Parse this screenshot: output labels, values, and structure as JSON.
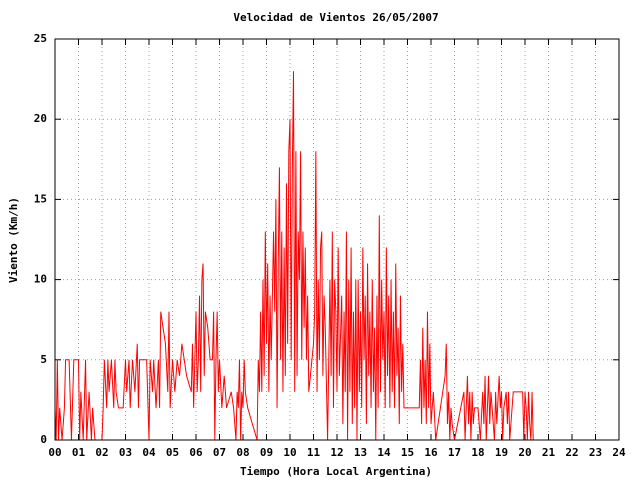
{
  "chart_data": {
    "type": "line",
    "title": "Velocidad de Vientos 26/05/2007",
    "xlabel": "Tiempo (Hora Local Argentina)",
    "ylabel": "Viento (Km/h)",
    "grid": true,
    "xlim": [
      0,
      24
    ],
    "ylim": [
      0,
      25
    ],
    "yticks": [
      0,
      5,
      10,
      15,
      20,
      25
    ],
    "xticks": [
      {
        "value": 0,
        "label": "00"
      },
      {
        "value": 1,
        "label": "01"
      },
      {
        "value": 2,
        "label": "02"
      },
      {
        "value": 3,
        "label": "03"
      },
      {
        "value": 4,
        "label": "04"
      },
      {
        "value": 5,
        "label": "05"
      },
      {
        "value": 6,
        "label": "06"
      },
      {
        "value": 7,
        "label": "07"
      },
      {
        "value": 8,
        "label": "08"
      },
      {
        "value": 9,
        "label": "09"
      },
      {
        "value": 10,
        "label": "10"
      },
      {
        "value": 11,
        "label": "11"
      },
      {
        "value": 12,
        "label": "12"
      },
      {
        "value": 13,
        "label": "13"
      },
      {
        "value": 14,
        "label": "14"
      },
      {
        "value": 15,
        "label": "15"
      },
      {
        "value": 16,
        "label": "16"
      },
      {
        "value": 17,
        "label": "17"
      },
      {
        "value": 18,
        "label": "18"
      },
      {
        "value": 19,
        "label": "19"
      },
      {
        "value": 20,
        "label": "20"
      },
      {
        "value": 21,
        "label": "21"
      },
      {
        "value": 22,
        "label": "22"
      },
      {
        "value": 23,
        "label": "23"
      },
      {
        "value": 24,
        "label": "24"
      }
    ],
    "x": [
      0,
      0.05,
      0.1,
      0.15,
      0.2,
      0.3,
      0.4,
      0.45,
      0.6,
      0.7,
      0.8,
      1,
      1.05,
      1.1,
      1.2,
      1.3,
      1.35,
      1.45,
      1.55,
      1.6,
      1.7,
      2,
      2.05,
      2.1,
      2.2,
      2.25,
      2.3,
      2.4,
      2.5,
      2.55,
      2.6,
      2.7,
      2.9,
      3,
      3.05,
      3.15,
      3.2,
      3.3,
      3.4,
      3.5,
      3.55,
      3.6,
      3.9,
      4,
      4.05,
      4.15,
      4.2,
      4.3,
      4.4,
      4.45,
      4.5,
      4.7,
      4.8,
      4.85,
      4.9,
      5,
      5.1,
      5.2,
      5.3,
      5.4,
      5.6,
      5.8,
      5.85,
      5.9,
      6,
      6.05,
      6.1,
      6.15,
      6.2,
      6.25,
      6.3,
      6.35,
      6.4,
      6.5,
      6.6,
      6.7,
      6.75,
      6.8,
      6.85,
      6.9,
      6.95,
      7,
      7.1,
      7.2,
      7.3,
      7.5,
      7.6,
      7.7,
      7.75,
      7.8,
      7.85,
      7.9,
      7.95,
      8,
      8.05,
      8.1,
      8.2,
      8.4,
      8.6,
      8.65,
      8.7,
      8.75,
      8.8,
      8.85,
      8.9,
      8.95,
      9,
      9.05,
      9.1,
      9.15,
      9.2,
      9.3,
      9.35,
      9.4,
      9.45,
      9.5,
      9.55,
      9.6,
      9.65,
      9.7,
      9.75,
      9.8,
      9.85,
      9.9,
      9.95,
      10,
      10.05,
      10.1,
      10.15,
      10.2,
      10.25,
      10.3,
      10.35,
      10.4,
      10.45,
      10.5,
      10.55,
      10.6,
      10.65,
      10.7,
      10.75,
      10.8,
      11,
      11.05,
      11.1,
      11.15,
      11.2,
      11.25,
      11.3,
      11.35,
      11.4,
      11.45,
      11.5,
      11.6,
      11.7,
      11.75,
      11.8,
      11.85,
      11.9,
      11.95,
      12,
      12.05,
      12.1,
      12.2,
      12.25,
      12.3,
      12.35,
      12.4,
      12.45,
      12.5,
      12.55,
      12.6,
      12.65,
      12.7,
      12.75,
      12.8,
      12.85,
      12.9,
      12.95,
      13,
      13.05,
      13.1,
      13.15,
      13.2,
      13.25,
      13.3,
      13.35,
      13.4,
      13.45,
      13.5,
      13.55,
      13.6,
      13.65,
      13.7,
      13.75,
      13.8,
      13.85,
      13.9,
      13.95,
      14,
      14.05,
      14.1,
      14.15,
      14.2,
      14.25,
      14.3,
      14.35,
      14.4,
      14.45,
      14.5,
      14.55,
      14.6,
      14.65,
      14.7,
      14.75,
      14.8,
      14.85,
      14.9,
      15.5,
      15.55,
      15.6,
      15.65,
      15.7,
      15.75,
      15.8,
      15.85,
      15.9,
      15.95,
      16,
      16.1,
      16.2,
      16.6,
      16.65,
      16.7,
      16.75,
      16.8,
      16.85,
      16.9,
      17,
      17.4,
      17.45,
      17.5,
      17.55,
      17.6,
      17.65,
      17.7,
      17.75,
      17.8,
      17.85,
      18,
      18.1,
      18.2,
      18.25,
      18.3,
      18.35,
      18.4,
      18.45,
      18.5,
      18.55,
      18.6,
      18.7,
      18.75,
      18.8,
      18.9,
      18.95,
      19,
      19.05,
      19.1,
      19.2,
      19.25,
      19.3,
      19.35,
      19.5,
      19.9,
      19.95,
      20,
      20.05,
      20.1,
      20.15,
      20.2,
      20.25,
      20.3,
      20.35
    ],
    "series": [
      {
        "color": "#ff0000",
        "values": [
          2,
          0,
          5,
          0,
          2,
          0,
          2,
          5,
          5,
          0,
          5,
          5,
          0,
          3,
          0,
          5,
          0,
          3,
          0,
          2,
          0,
          0,
          2,
          5,
          2,
          5,
          3,
          5,
          2,
          5,
          3,
          2,
          2,
          5,
          3,
          5,
          2,
          5,
          3,
          6,
          2,
          5,
          5,
          0,
          5,
          3,
          5,
          2,
          5,
          2,
          8,
          6,
          3,
          8,
          2,
          5,
          3,
          5,
          4,
          6,
          4,
          3,
          6,
          2,
          8,
          3,
          5,
          9,
          3,
          10,
          11,
          4,
          8,
          7,
          5,
          5,
          8,
          0,
          5,
          8,
          3,
          5,
          2,
          4,
          2,
          3,
          2,
          0,
          3,
          2,
          5,
          0,
          3,
          2,
          5,
          3,
          2,
          1,
          0,
          5,
          3,
          8,
          3,
          10,
          4,
          13,
          6,
          11,
          3,
          9,
          5,
          13,
          8,
          15,
          2,
          11,
          17,
          5,
          13,
          3,
          12,
          4,
          16,
          6,
          18,
          20,
          5,
          17,
          23,
          3,
          18,
          4,
          13,
          10,
          18,
          5,
          13,
          7,
          12,
          5,
          9,
          3,
          6,
          8,
          18,
          3,
          10,
          5,
          12,
          13,
          4,
          9,
          7,
          0,
          10,
          4,
          13,
          2,
          10,
          8,
          3,
          12,
          4,
          9,
          1,
          8,
          3,
          13,
          0,
          10,
          3,
          12,
          1,
          8,
          2,
          10,
          0,
          10,
          3,
          8,
          2,
          12,
          5,
          9,
          1,
          11,
          4,
          8,
          2,
          10,
          3,
          7,
          0,
          9,
          2,
          14,
          3,
          10,
          5,
          8,
          2,
          12,
          4,
          9,
          2,
          10,
          3,
          8,
          2,
          11,
          4,
          7,
          1,
          9,
          3,
          6,
          2,
          2,
          2,
          5,
          1,
          7,
          2,
          5,
          1,
          8,
          2,
          6,
          1,
          3,
          0,
          4,
          6,
          1,
          3,
          0,
          2,
          1,
          0,
          3,
          0,
          2,
          4,
          1,
          3,
          0,
          3,
          1,
          2,
          2,
          0,
          3,
          1,
          4,
          0,
          2,
          4,
          1,
          3,
          2,
          0,
          3,
          1,
          4,
          2,
          3,
          0,
          2,
          3,
          1,
          3,
          0,
          3,
          3,
          0,
          3,
          2,
          0,
          3,
          1,
          0,
          3,
          0
        ]
      }
    ]
  }
}
